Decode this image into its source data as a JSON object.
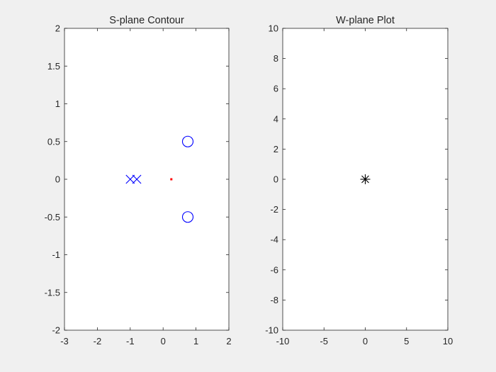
{
  "chart_data": [
    {
      "type": "scatter",
      "title": "S-plane Contour",
      "xlim": [
        -3,
        2
      ],
      "ylim": [
        -2,
        2
      ],
      "xticks": [
        -3,
        -2,
        -1,
        0,
        1,
        2
      ],
      "yticks": [
        -2,
        -1.5,
        -1,
        -0.5,
        0,
        0.5,
        1,
        1.5,
        2
      ],
      "xticklabels": [
        "-3",
        "-2",
        "-1",
        "0",
        "1",
        "2"
      ],
      "yticklabels": [
        "-2",
        "-1.5",
        "-1",
        "-0.5",
        "0",
        "0.5",
        "1",
        "1.5",
        "2"
      ],
      "grid": false,
      "series": [
        {
          "marker": "x",
          "color": "#0000ff",
          "points": [
            [
              -1,
              0
            ],
            [
              -0.8,
              0
            ]
          ]
        },
        {
          "marker": "o",
          "color": "#0000ff",
          "points": [
            [
              0.75,
              0.5
            ],
            [
              0.75,
              -0.5
            ]
          ]
        },
        {
          "marker": ".",
          "color": "#ff0000",
          "points": [
            [
              0.25,
              0
            ]
          ]
        }
      ]
    },
    {
      "type": "scatter",
      "title": "W-plane Plot",
      "xlim": [
        -10,
        10
      ],
      "ylim": [
        -10,
        10
      ],
      "xticks": [
        -10,
        -5,
        0,
        5,
        10
      ],
      "yticks": [
        -10,
        -8,
        -6,
        -4,
        -2,
        0,
        2,
        4,
        6,
        8,
        10
      ],
      "xticklabels": [
        "-10",
        "-5",
        "0",
        "5",
        "10"
      ],
      "yticklabels": [
        "-10",
        "-8",
        "-6",
        "-4",
        "-2",
        "0",
        "2",
        "4",
        "6",
        "8",
        "10"
      ],
      "grid": false,
      "series": [
        {
          "marker": "*",
          "color": "#000000",
          "points": [
            [
              0,
              0
            ]
          ]
        }
      ]
    }
  ]
}
